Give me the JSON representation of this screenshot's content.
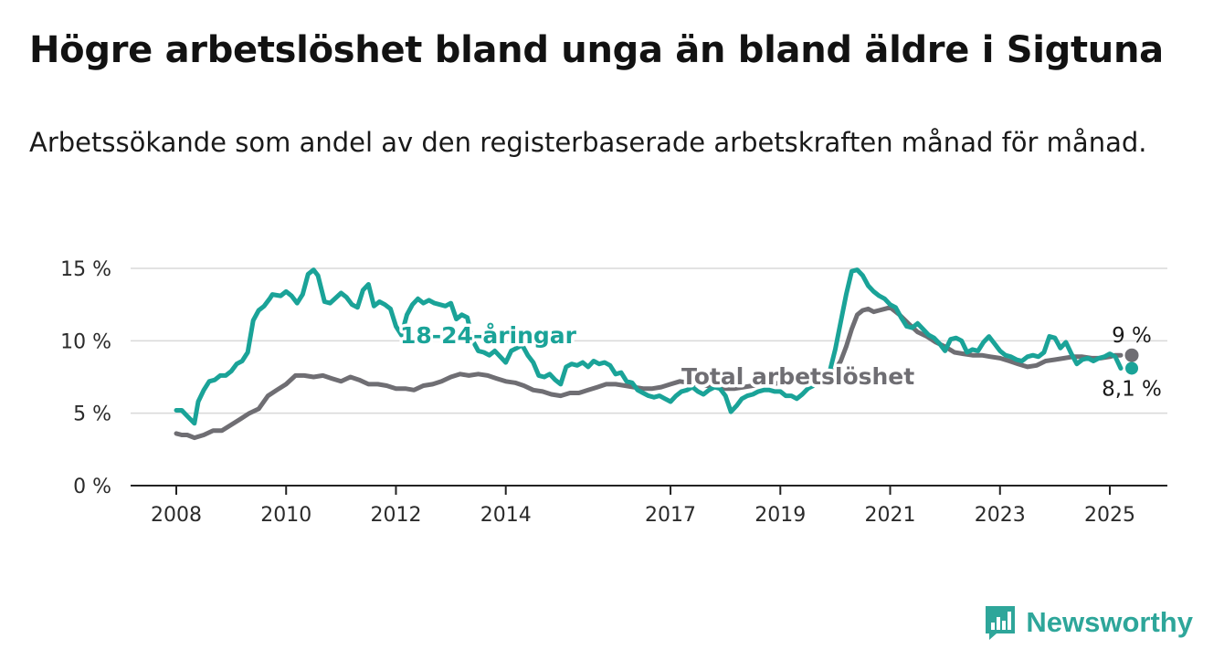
{
  "title": "Högre arbetslöshet bland unga än bland äldre i Sigtuna",
  "subtitle": "Arbetssökande som andel av den registerbaserade arbetskraften månad för månad.",
  "brand": {
    "name": "Newsworthy"
  },
  "colors": {
    "youth": "#1aa398",
    "total": "#6f6e73",
    "grid": "#d9d9d9",
    "axis": "#222222"
  },
  "chart_data": {
    "type": "line",
    "xlabel": "",
    "ylabel": "",
    "xlim": [
      2008,
      2026
    ],
    "ylim": [
      0,
      15
    ],
    "grid": true,
    "y_ticks": [
      {
        "value": 0,
        "label": "0 %"
      },
      {
        "value": 5,
        "label": "5 %"
      },
      {
        "value": 10,
        "label": "10 %"
      },
      {
        "value": 15,
        "label": "15 %"
      }
    ],
    "x_ticks": [
      {
        "value": 2008,
        "label": "2008"
      },
      {
        "value": 2010,
        "label": "2010"
      },
      {
        "value": 2012,
        "label": "2012"
      },
      {
        "value": 2014,
        "label": "2014"
      },
      {
        "value": 2017,
        "label": "2017"
      },
      {
        "value": 2019,
        "label": "2019"
      },
      {
        "value": 2021,
        "label": "2021"
      },
      {
        "value": 2023,
        "label": "2023"
      },
      {
        "value": 2025,
        "label": "2025"
      }
    ],
    "series": [
      {
        "name": "18-24-åringar",
        "color": "#1aa398",
        "end_label": "8,1 %",
        "x": [
          2008.0,
          2008.1,
          2008.2,
          2008.33,
          2008.4,
          2008.5,
          2008.6,
          2008.7,
          2008.8,
          2008.9,
          2009.0,
          2009.1,
          2009.2,
          2009.3,
          2009.4,
          2009.5,
          2009.6,
          2009.7,
          2009.75,
          2009.9,
          2010.0,
          2010.1,
          2010.2,
          2010.3,
          2010.4,
          2010.5,
          2010.58,
          2010.7,
          2010.8,
          2011.0,
          2011.1,
          2011.2,
          2011.3,
          2011.4,
          2011.5,
          2011.6,
          2011.7,
          2011.8,
          2011.9,
          2012.0,
          2012.1,
          2012.2,
          2012.3,
          2012.4,
          2012.5,
          2012.6,
          2012.7,
          2012.8,
          2012.9,
          2013.0,
          2013.1,
          2013.2,
          2013.3,
          2013.4,
          2013.5,
          2013.6,
          2013.7,
          2013.8,
          2013.9,
          2014.0,
          2014.1,
          2014.2,
          2014.3,
          2014.4,
          2014.5,
          2014.6,
          2014.7,
          2014.8,
          2014.9,
          2015.0,
          2015.1,
          2015.2,
          2015.3,
          2015.4,
          2015.5,
          2015.6,
          2015.7,
          2015.8,
          2015.9,
          2016.0,
          2016.1,
          2016.2,
          2016.3,
          2016.4,
          2016.5,
          2016.6,
          2016.7,
          2016.8,
          2016.9,
          2017.0,
          2017.1,
          2017.2,
          2017.3,
          2017.4,
          2017.5,
          2017.6,
          2017.7,
          2017.8,
          2017.9,
          2018.0,
          2018.1,
          2018.2,
          2018.3,
          2018.4,
          2018.5,
          2018.6,
          2018.7,
          2018.8,
          2018.9,
          2019.0,
          2019.1,
          2019.2,
          2019.3,
          2019.4,
          2019.5,
          2019.6,
          2019.7,
          2019.8,
          2019.9,
          2020.0,
          2020.1,
          2020.2,
          2020.3,
          2020.4,
          2020.5,
          2020.6,
          2020.7,
          2020.8,
          2020.9,
          2021.0,
          2021.1,
          2021.2,
          2021.3,
          2021.4,
          2021.5,
          2021.6,
          2021.7,
          2021.8,
          2021.9,
          2022.0,
          2022.1,
          2022.2,
          2022.3,
          2022.4,
          2022.5,
          2022.6,
          2022.7,
          2022.8,
          2022.9,
          2023.0,
          2023.1,
          2023.2,
          2023.3,
          2023.4,
          2023.5,
          2023.6,
          2023.7,
          2023.8,
          2023.9,
          2024.0,
          2024.1,
          2024.2,
          2024.3,
          2024.4,
          2024.5,
          2024.6,
          2024.7,
          2024.8,
          2024.9,
          2025.0,
          2025.1,
          2025.2
        ],
        "values": [
          5.2,
          5.2,
          4.8,
          4.3,
          5.8,
          6.6,
          7.2,
          7.3,
          7.6,
          7.6,
          7.9,
          8.4,
          8.6,
          9.2,
          11.4,
          12.1,
          12.4,
          12.9,
          13.2,
          13.1,
          13.4,
          13.1,
          12.6,
          13.2,
          14.6,
          14.9,
          14.5,
          12.7,
          12.6,
          13.3,
          13.0,
          12.5,
          12.3,
          13.5,
          13.9,
          12.4,
          12.7,
          12.5,
          12.2,
          11.0,
          10.4,
          11.8,
          12.5,
          12.9,
          12.6,
          12.8,
          12.6,
          12.5,
          12.4,
          12.6,
          11.5,
          11.8,
          11.6,
          10.0,
          9.3,
          9.2,
          9.0,
          9.3,
          8.9,
          8.5,
          9.3,
          9.5,
          9.7,
          9.0,
          8.5,
          7.6,
          7.5,
          7.7,
          7.3,
          7.0,
          8.2,
          8.4,
          8.3,
          8.5,
          8.2,
          8.6,
          8.4,
          8.5,
          8.3,
          7.7,
          7.8,
          7.2,
          7.1,
          6.6,
          6.4,
          6.2,
          6.1,
          6.2,
          6.0,
          5.8,
          6.2,
          6.5,
          6.6,
          6.8,
          6.5,
          6.3,
          6.6,
          6.8,
          6.7,
          6.2,
          5.1,
          5.5,
          6.0,
          6.2,
          6.3,
          6.5,
          6.6,
          6.6,
          6.5,
          6.5,
          6.2,
          6.2,
          6.0,
          6.3,
          6.7,
          6.9,
          7.2,
          7.5,
          7.9,
          9.4,
          11.3,
          13.2,
          14.8,
          14.9,
          14.5,
          13.8,
          13.4,
          13.1,
          12.9,
          12.5,
          12.3,
          11.6,
          11.0,
          10.9,
          11.2,
          10.8,
          10.4,
          10.2,
          9.8,
          9.3,
          10.1,
          10.2,
          10.0,
          9.2,
          9.4,
          9.3,
          9.9,
          10.3,
          9.8,
          9.3,
          9.0,
          8.9,
          8.7,
          8.6,
          8.9,
          9.0,
          8.9,
          9.2,
          10.3,
          10.2,
          9.5,
          9.9,
          9.1,
          8.4,
          8.7,
          8.8,
          8.6,
          8.8,
          8.9,
          9.1,
          8.9,
          8.1
        ]
      },
      {
        "name": "Total arbetslöshet",
        "color": "#6f6e73",
        "end_label": "9 %",
        "x": [
          2008.0,
          2008.1,
          2008.2,
          2008.33,
          2008.5,
          2008.67,
          2008.83,
          2009.0,
          2009.17,
          2009.33,
          2009.5,
          2009.67,
          2009.83,
          2010.0,
          2010.17,
          2010.33,
          2010.5,
          2010.67,
          2010.83,
          2011.0,
          2011.17,
          2011.33,
          2011.5,
          2011.67,
          2011.83,
          2012.0,
          2012.17,
          2012.33,
          2012.5,
          2012.67,
          2012.83,
          2013.0,
          2013.17,
          2013.33,
          2013.5,
          2013.67,
          2013.83,
          2014.0,
          2014.17,
          2014.33,
          2014.5,
          2014.67,
          2014.83,
          2015.0,
          2015.17,
          2015.33,
          2015.5,
          2015.67,
          2015.83,
          2016.0,
          2016.17,
          2016.33,
          2016.5,
          2016.67,
          2016.83,
          2017.0,
          2017.17,
          2017.33,
          2017.5,
          2017.67,
          2017.83,
          2018.0,
          2018.17,
          2018.33,
          2018.5,
          2018.67,
          2018.83,
          2019.0,
          2019.17,
          2019.33,
          2019.5,
          2019.67,
          2019.83,
          2020.0,
          2020.1,
          2020.2,
          2020.3,
          2020.4,
          2020.5,
          2020.6,
          2020.7,
          2020.8,
          2020.9,
          2021.0,
          2021.17,
          2021.33,
          2021.5,
          2021.67,
          2021.83,
          2022.0,
          2022.17,
          2022.33,
          2022.5,
          2022.67,
          2022.83,
          2023.0,
          2023.17,
          2023.33,
          2023.5,
          2023.67,
          2023.83,
          2024.0,
          2024.17,
          2024.33,
          2024.5,
          2024.67,
          2024.83,
          2025.0,
          2025.1,
          2025.2
        ],
        "values": [
          3.6,
          3.5,
          3.5,
          3.3,
          3.5,
          3.8,
          3.8,
          4.2,
          4.6,
          5.0,
          5.3,
          6.2,
          6.6,
          7.0,
          7.6,
          7.6,
          7.5,
          7.6,
          7.4,
          7.2,
          7.5,
          7.3,
          7.0,
          7.0,
          6.9,
          6.7,
          6.7,
          6.6,
          6.9,
          7.0,
          7.2,
          7.5,
          7.7,
          7.6,
          7.7,
          7.6,
          7.4,
          7.2,
          7.1,
          6.9,
          6.6,
          6.5,
          6.3,
          6.2,
          6.4,
          6.4,
          6.6,
          6.8,
          7.0,
          7.0,
          6.9,
          6.8,
          6.7,
          6.7,
          6.8,
          7.0,
          7.2,
          7.1,
          7.0,
          6.9,
          6.8,
          6.7,
          6.7,
          6.8,
          6.9,
          7.0,
          7.0,
          7.1,
          7.3,
          7.5,
          7.6,
          7.7,
          7.8,
          8.0,
          8.6,
          9.6,
          10.8,
          11.8,
          12.1,
          12.2,
          12.0,
          12.1,
          12.2,
          12.3,
          11.8,
          11.2,
          10.6,
          10.3,
          9.9,
          9.6,
          9.2,
          9.1,
          9.0,
          9.0,
          8.9,
          8.8,
          8.6,
          8.4,
          8.2,
          8.3,
          8.6,
          8.7,
          8.8,
          8.9,
          8.9,
          8.8,
          8.8,
          8.9,
          9.0,
          9.0
        ]
      }
    ]
  }
}
